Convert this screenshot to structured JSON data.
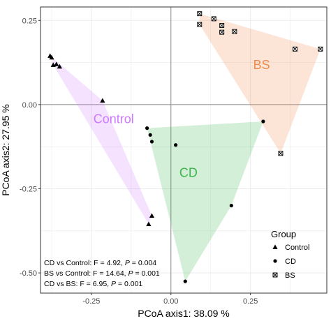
{
  "chart_data": {
    "type": "scatter",
    "title": "",
    "xlabel": "PCoA axis1: 38.09 %",
    "ylabel": "PCoA axis2: 27.95 %",
    "xlim": [
      -0.41,
      0.49
    ],
    "ylim": [
      -0.56,
      0.29
    ],
    "xticks": [
      -0.25,
      0.0,
      0.25
    ],
    "xtick_labels": [
      "-0.25",
      "0.00",
      "0.25"
    ],
    "yticks": [
      0.25,
      0.0,
      -0.25,
      -0.5
    ],
    "ytick_labels": [
      "0.25",
      "0.00",
      "-0.25",
      "-0.50"
    ],
    "grid": true,
    "reference_lines": {
      "x": 0,
      "y": 0
    },
    "legend": {
      "title": "Group",
      "placement": "bottom-right"
    },
    "series": [
      {
        "name": "Control",
        "marker": "triangle",
        "color": "#CC79FF",
        "hull_label": "Control",
        "hull_label_pos": [
          -0.18,
          -0.045
        ],
        "points": [
          [
            -0.38,
            0.145
          ],
          [
            -0.375,
            0.14
          ],
          [
            -0.37,
            0.118
          ],
          [
            -0.36,
            0.12
          ],
          [
            -0.35,
            0.113
          ],
          [
            -0.215,
            0.012
          ],
          [
            -0.06,
            -0.33
          ],
          [
            -0.07,
            -0.355
          ]
        ]
      },
      {
        "name": "CD",
        "marker": "circle",
        "color": "#3CB44B",
        "hull_label": "CD",
        "hull_label_pos": [
          0.055,
          -0.205
        ],
        "points": [
          [
            -0.075,
            -0.07
          ],
          [
            -0.065,
            -0.09
          ],
          [
            -0.06,
            -0.11
          ],
          [
            0.015,
            -0.12
          ],
          [
            0.29,
            -0.05
          ],
          [
            0.19,
            -0.3
          ],
          [
            0.045,
            -0.525
          ]
        ]
      },
      {
        "name": "BS",
        "marker": "boxed-x",
        "color": "#F08A4B",
        "hull_label": "BS",
        "hull_label_pos": [
          0.285,
          0.115
        ],
        "points": [
          [
            0.09,
            0.27
          ],
          [
            0.135,
            0.255
          ],
          [
            0.09,
            0.238
          ],
          [
            0.16,
            0.235
          ],
          [
            0.16,
            0.215
          ],
          [
            0.2,
            0.217
          ],
          [
            0.39,
            0.165
          ],
          [
            0.47,
            0.165
          ],
          [
            0.345,
            -0.145
          ]
        ]
      }
    ],
    "annotations": [
      {
        "segments": [
          {
            "text": "CD vs Control: F = 4.92, ",
            "italic": false
          },
          {
            "text": "P",
            "italic": true
          },
          {
            "text": " = 0.004",
            "italic": false
          }
        ]
      },
      {
        "segments": [
          {
            "text": "BS vs Control: F = 14.64, ",
            "italic": false
          },
          {
            "text": "P",
            "italic": true
          },
          {
            "text": " = 0.001",
            "italic": false
          }
        ]
      },
      {
        "segments": [
          {
            "text": "CD vs BS: F = 6.95, ",
            "italic": false
          },
          {
            "text": "P",
            "italic": true
          },
          {
            "text": " = 0.001",
            "italic": false
          }
        ]
      }
    ]
  }
}
